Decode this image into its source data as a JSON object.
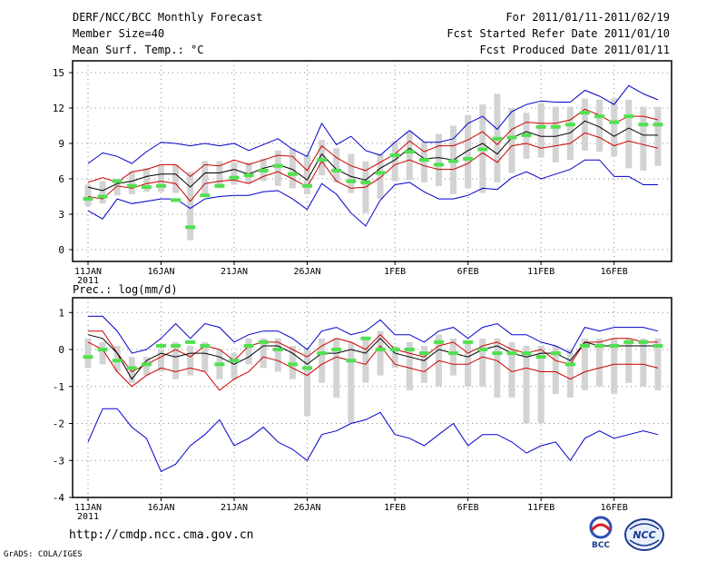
{
  "header": {
    "title": "DERF/NCC/BCC Monthly Forecast",
    "member_size": "Member Size=40",
    "variable": "Mean Surf. Temp.: °C",
    "forecast_range": "For 2011/01/11-2011/02/19",
    "started_refer": "Fcst Started Refer Date 2011/01/10",
    "produced": "Fcst Produced Date 2011/01/11"
  },
  "footer": {
    "url": "http://cmdp.ncc.cma.gov.cn",
    "credit": "GrADS: COLA/IGES"
  },
  "logos": {
    "bcc": "BCC",
    "ncc": "NCC"
  },
  "colors": {
    "box": "#d3d3d3",
    "observed": "#50e050",
    "ensemble_mean": "#000000",
    "spread": "#cc0000",
    "extreme": "#0000cc",
    "grid": "#888888"
  },
  "chart_data": [
    {
      "type": "line",
      "title": "Mean Surf. Temp.: °C",
      "x_tick_labels": [
        "11JAN\n2011",
        "16JAN",
        "21JAN",
        "26JAN",
        "1FEB",
        "6FEB",
        "11FEB",
        "16FEB"
      ],
      "x_tick_days": [
        0,
        5,
        10,
        15,
        21,
        26,
        31,
        36
      ],
      "x_range": [
        0,
        39
      ],
      "ylim": [
        -1,
        16
      ],
      "y_ticks": [
        0,
        3,
        6,
        9,
        12,
        15
      ],
      "grid": true,
      "series": [
        {
          "name": "max",
          "values": [
            7.3,
            8.2,
            7.9,
            7.3,
            8.3,
            9.1,
            9.0,
            8.8,
            9.0,
            8.8,
            9.0,
            8.4,
            8.9,
            9.4,
            8.5,
            7.9,
            10.7,
            8.9,
            9.6,
            8.4,
            8.0,
            9.1,
            10.1,
            9.1,
            9.1,
            9.4,
            10.7,
            11.3,
            10.2,
            11.7,
            12.3,
            12.6,
            12.5,
            12.5,
            13.5,
            13.0,
            12.3,
            13.9,
            13.2,
            12.7
          ]
        },
        {
          "name": "upper",
          "values": [
            5.7,
            6.1,
            5.7,
            6.6,
            6.8,
            7.2,
            7.2,
            6.2,
            7.2,
            7.1,
            7.6,
            7.2,
            7.6,
            8.0,
            7.9,
            6.7,
            8.8,
            7.8,
            7.1,
            6.7,
            7.4,
            8.1,
            9.2,
            8.3,
            8.8,
            8.8,
            9.3,
            10.0,
            8.9,
            10.2,
            10.8,
            10.7,
            10.7,
            11.0,
            11.9,
            11.4,
            10.7,
            11.3,
            11.3,
            11.0
          ]
        },
        {
          "name": "mean",
          "values": [
            5.3,
            5.0,
            5.6,
            5.8,
            6.2,
            6.4,
            6.4,
            5.3,
            6.5,
            6.5,
            6.8,
            6.4,
            6.9,
            7.2,
            6.8,
            5.9,
            8.1,
            6.8,
            6.2,
            5.9,
            6.9,
            7.6,
            8.6,
            7.7,
            7.8,
            7.6,
            8.4,
            9.0,
            8.1,
            9.5,
            10.0,
            9.6,
            9.6,
            9.9,
            10.9,
            10.4,
            9.6,
            10.3,
            9.7,
            9.7
          ]
        },
        {
          "name": "lower",
          "values": [
            4.5,
            4.3,
            5.4,
            5.2,
            5.6,
            5.8,
            5.6,
            4.1,
            5.6,
            5.8,
            5.9,
            5.6,
            6.2,
            6.6,
            6.0,
            5.3,
            7.5,
            5.8,
            5.2,
            5.3,
            6.1,
            7.2,
            7.6,
            7.1,
            6.8,
            6.8,
            7.3,
            8.2,
            7.4,
            8.8,
            9.0,
            8.6,
            8.8,
            9.0,
            9.9,
            9.5,
            8.8,
            9.2,
            8.9,
            8.6
          ]
        },
        {
          "name": "min",
          "values": [
            3.3,
            2.6,
            4.3,
            3.9,
            4.1,
            4.3,
            4.3,
            3.5,
            4.3,
            4.5,
            4.6,
            4.6,
            4.9,
            5.0,
            4.3,
            3.4,
            5.6,
            4.7,
            3.1,
            2.0,
            4.2,
            5.5,
            5.7,
            4.9,
            4.3,
            4.3,
            4.6,
            5.2,
            5.1,
            6.1,
            6.6,
            6.0,
            6.4,
            6.8,
            7.6,
            7.6,
            6.2,
            6.2,
            5.5,
            5.5
          ]
        },
        {
          "name": "observed",
          "values": [
            4.3,
            4.5,
            5.8,
            5.4,
            5.3,
            5.4,
            4.2,
            1.9,
            4.6,
            5.4,
            6.1,
            6.3,
            6.7,
            7.1,
            6.4,
            5.4,
            7.6,
            6.7,
            5.8,
            5.7,
            6.5,
            8.0,
            8.3,
            7.6,
            7.2,
            7.5,
            7.7,
            8.5,
            9.4,
            9.5,
            9.7,
            10.4,
            10.4,
            10.6,
            11.6,
            11.3,
            10.8,
            11.3,
            10.6,
            10.6
          ]
        },
        {
          "name": "box_top",
          "values": [
            5.5,
            5.8,
            6.0,
            6.6,
            6.9,
            7.2,
            7.2,
            6.6,
            7.5,
            7.5,
            7.4,
            7.4,
            7.7,
            8.4,
            8.6,
            8.0,
            9.3,
            8.6,
            8.1,
            7.5,
            8.1,
            9.2,
            10.0,
            9.1,
            9.8,
            10.5,
            11.4,
            12.3,
            13.2,
            12.0,
            11.6,
            12.4,
            12.1,
            12.1,
            12.8,
            12.7,
            12.8,
            12.7,
            12.1,
            12.1
          ]
        },
        {
          "name": "box_bottom",
          "values": [
            3.7,
            3.9,
            4.6,
            4.7,
            4.9,
            4.9,
            4.8,
            0.8,
            4.6,
            5.2,
            5.5,
            5.6,
            5.8,
            5.4,
            5.2,
            4.7,
            6.3,
            5.7,
            4.8,
            3.1,
            4.3,
            5.8,
            5.9,
            5.7,
            5.4,
            4.7,
            5.2,
            4.8,
            5.7,
            6.5,
            7.7,
            7.8,
            7.4,
            7.6,
            8.4,
            8.3,
            7.9,
            6.9,
            6.7,
            7.1
          ]
        }
      ]
    },
    {
      "type": "line",
      "title": "Prec.: log(mm/d)",
      "x_tick_labels": [
        "11JAN\n2011",
        "16JAN",
        "21JAN",
        "26JAN",
        "1FEB",
        "6FEB",
        "11FEB",
        "16FEB"
      ],
      "x_tick_days": [
        0,
        5,
        10,
        15,
        21,
        26,
        31,
        36
      ],
      "x_range": [
        0,
        39
      ],
      "ylim": [
        -4,
        1.4
      ],
      "y_ticks": [
        -4,
        -3,
        -2,
        -1,
        0,
        1
      ],
      "grid": true,
      "series": [
        {
          "name": "max",
          "values": [
            0.9,
            0.9,
            0.5,
            -0.1,
            0.0,
            0.3,
            0.7,
            0.3,
            0.7,
            0.6,
            0.2,
            0.4,
            0.5,
            0.5,
            0.3,
            0.0,
            0.5,
            0.6,
            0.4,
            0.5,
            0.8,
            0.4,
            0.4,
            0.2,
            0.5,
            0.6,
            0.3,
            0.6,
            0.7,
            0.4,
            0.4,
            0.2,
            0.1,
            -0.1,
            0.6,
            0.5,
            0.6,
            0.6,
            0.6,
            0.5
          ]
        },
        {
          "name": "upper",
          "values": [
            0.5,
            0.5,
            -0.1,
            -0.6,
            -0.4,
            -0.2,
            0.0,
            -0.2,
            0.1,
            0.0,
            -0.3,
            0.1,
            0.2,
            0.2,
            0.0,
            -0.2,
            0.1,
            0.3,
            0.2,
            0.0,
            0.4,
            0.0,
            -0.1,
            -0.2,
            0.1,
            0.2,
            -0.1,
            0.1,
            0.2,
            0.0,
            -0.1,
            0.0,
            -0.3,
            -0.4,
            0.2,
            0.2,
            0.3,
            0.3,
            0.2,
            0.2
          ]
        },
        {
          "name": "mean",
          "values": [
            0.4,
            0.3,
            -0.1,
            -0.8,
            -0.3,
            -0.1,
            -0.2,
            -0.1,
            -0.1,
            -0.2,
            -0.4,
            -0.2,
            0.1,
            0.1,
            -0.1,
            -0.4,
            -0.1,
            -0.1,
            0.0,
            -0.1,
            0.3,
            -0.1,
            -0.2,
            -0.3,
            0.0,
            -0.1,
            -0.2,
            0.0,
            0.1,
            -0.1,
            -0.2,
            -0.1,
            -0.1,
            -0.3,
            0.2,
            0.1,
            0.1,
            0.1,
            0.1,
            0.1
          ]
        },
        {
          "name": "lower",
          "values": [
            0.2,
            0.0,
            -0.6,
            -1.0,
            -0.7,
            -0.5,
            -0.6,
            -0.5,
            -0.6,
            -1.1,
            -0.8,
            -0.6,
            -0.2,
            -0.3,
            -0.5,
            -0.7,
            -0.4,
            -0.2,
            -0.3,
            -0.4,
            0.1,
            -0.4,
            -0.5,
            -0.6,
            -0.3,
            -0.4,
            -0.4,
            -0.2,
            -0.3,
            -0.6,
            -0.5,
            -0.6,
            -0.6,
            -0.8,
            -0.6,
            -0.5,
            -0.4,
            -0.4,
            -0.4,
            -0.5
          ]
        },
        {
          "name": "min",
          "values": [
            -2.5,
            -1.6,
            -1.6,
            -2.1,
            -2.4,
            -3.3,
            -3.1,
            -2.6,
            -2.3,
            -1.9,
            -2.6,
            -2.4,
            -2.1,
            -2.5,
            -2.7,
            -3.0,
            -2.3,
            -2.2,
            -2.0,
            -1.9,
            -1.7,
            -2.3,
            -2.4,
            -2.6,
            -2.3,
            -2.0,
            -2.6,
            -2.3,
            -2.3,
            -2.5,
            -2.8,
            -2.6,
            -2.5,
            -3.0,
            -2.4,
            -2.2,
            -2.4,
            -2.3,
            -2.2,
            -2.3
          ]
        },
        {
          "name": "observed",
          "values": [
            -0.2,
            0.0,
            -0.3,
            -0.5,
            -0.4,
            0.1,
            0.1,
            0.2,
            0.1,
            -0.4,
            -0.3,
            0.1,
            0.2,
            0.0,
            -0.4,
            -0.5,
            -0.1,
            0.0,
            -0.3,
            0.3,
            0.0,
            0.0,
            0.0,
            -0.1,
            0.2,
            -0.1,
            0.2,
            0.0,
            -0.1,
            -0.1,
            -0.1,
            -0.2,
            -0.1,
            -0.4,
            0.1,
            0.1,
            0.1,
            0.2,
            0.2,
            0.1
          ]
        },
        {
          "name": "box_top",
          "values": [
            0.3,
            0.2,
            0.1,
            -0.2,
            -0.2,
            0.0,
            0.2,
            0.1,
            0.2,
            0.0,
            -0.1,
            0.3,
            0.3,
            0.3,
            0.1,
            0.0,
            0.3,
            0.3,
            0.2,
            0.3,
            0.5,
            0.1,
            0.2,
            0.1,
            0.4,
            0.3,
            0.2,
            0.3,
            0.3,
            0.2,
            0.1,
            0.1,
            0.1,
            0.0,
            0.3,
            0.3,
            0.3,
            0.3,
            0.3,
            0.3
          ]
        },
        {
          "name": "box_bottom",
          "values": [
            -0.5,
            -0.4,
            -0.6,
            -0.9,
            -0.7,
            -0.6,
            -0.8,
            -0.7,
            -0.6,
            -0.8,
            -0.8,
            -0.4,
            -0.5,
            -0.6,
            -0.8,
            -1.8,
            -0.9,
            -1.3,
            -2.0,
            -0.9,
            -0.7,
            -0.5,
            -1.1,
            -0.9,
            -1.0,
            -0.7,
            -1.0,
            -1.0,
            -1.3,
            -1.3,
            -2.0,
            -2.0,
            -1.2,
            -1.3,
            -1.1,
            -1.0,
            -1.2,
            -0.9,
            -1.0,
            -1.1
          ]
        }
      ]
    }
  ]
}
